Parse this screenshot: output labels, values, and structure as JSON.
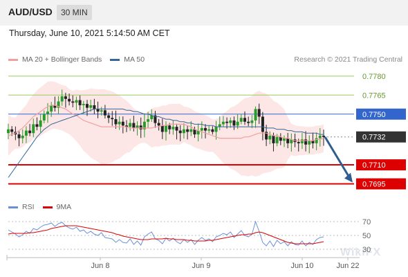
{
  "header": {
    "symbol": "AUD/USD",
    "timeframe": "30 MIN",
    "datetime": "Thursday, June 10, 2021 5:14:50 AM CET"
  },
  "legend": {
    "ma20_label": "MA 20 + Bollinger Bands",
    "ma50_label": "MA 50",
    "credit": "Research © 2021 Trading Central",
    "rsi_label": "RSI",
    "ma9_label": "9MA"
  },
  "watermark": "WikiFX",
  "colors": {
    "ma20": "#f1a0a0",
    "bollinger_fill": "#fde3e3",
    "ma50": "#336699",
    "rsi": "#6b8fd6",
    "ma9": "#dd0000",
    "support": "#dd0000",
    "resistance_green": "#99cc66",
    "pivot_blue": "#3366cc",
    "current": "#333333",
    "candle_up": "#2a9a2a",
    "candle_down": "#222222",
    "arrow": "#2f5d8f"
  },
  "chart_data": [
    {
      "type": "candlestick",
      "title": "AUD/USD 30 MIN",
      "x_ticks": [
        "Jun 8",
        "Jun 9",
        "Jun 10",
        "Jun 22"
      ],
      "ylim": [
        0.7686,
        0.7787
      ],
      "levels": [
        {
          "value": 0.778,
          "label": "0.7780",
          "kind": "resistance"
        },
        {
          "value": 0.7765,
          "label": "0.7765",
          "kind": "resistance"
        },
        {
          "value": 0.775,
          "label": "0.7750",
          "kind": "pivot"
        },
        {
          "value": 0.7732,
          "label": "0.7732",
          "kind": "current"
        },
        {
          "value": 0.771,
          "label": "0.7710",
          "kind": "support"
        },
        {
          "value": 0.7695,
          "label": "0.7695",
          "kind": "support"
        }
      ],
      "close": [
        0.7738,
        0.7736,
        0.7734,
        0.7731,
        0.7733,
        0.7737,
        0.7735,
        0.7742,
        0.774,
        0.7745,
        0.775,
        0.7752,
        0.7757,
        0.7755,
        0.776,
        0.7764,
        0.7762,
        0.776,
        0.7759,
        0.7761,
        0.7757,
        0.7758,
        0.7755,
        0.7757,
        0.7754,
        0.7752,
        0.7753,
        0.7749,
        0.7747,
        0.7746,
        0.7742,
        0.7744,
        0.7741,
        0.774,
        0.7743,
        0.7739,
        0.7741,
        0.7738,
        0.7744,
        0.7746,
        0.7749,
        0.7743,
        0.7741,
        0.7736,
        0.7741,
        0.7738,
        0.774,
        0.7737,
        0.7735,
        0.7738,
        0.7736,
        0.7738,
        0.7734,
        0.7737,
        0.7739,
        0.7737,
        0.7738,
        0.7736,
        0.774,
        0.7742,
        0.7744,
        0.7743,
        0.7745,
        0.7741,
        0.7744,
        0.7747,
        0.7744,
        0.7743,
        0.7745,
        0.7754,
        0.7748,
        0.7736,
        0.773,
        0.7733,
        0.7727,
        0.7732,
        0.7729,
        0.7731,
        0.7727,
        0.773,
        0.7728,
        0.7727,
        0.773,
        0.7726,
        0.7729,
        0.7727,
        0.7731,
        0.7733,
        0.7732
      ],
      "ma20": [
        0.7733,
        0.7734,
        0.7735,
        0.7737,
        0.7739,
        0.7742,
        0.7745,
        0.7748,
        0.775,
        0.7752,
        0.7754,
        0.7756,
        0.7757,
        0.7757,
        0.7756,
        0.7755,
        0.7754,
        0.7752,
        0.775,
        0.7749,
        0.7747,
        0.7745,
        0.7744,
        0.7743,
        0.7742,
        0.7741,
        0.774,
        0.774,
        0.774,
        0.774,
        0.774,
        0.774,
        0.774,
        0.774,
        0.7739,
        0.7739,
        0.7739,
        0.7739,
        0.7739,
        0.7739,
        0.7739,
        0.774,
        0.774,
        0.7741,
        0.7741,
        0.7742,
        0.7742,
        0.7742,
        0.7742,
        0.7742,
        0.7741,
        0.774,
        0.7738,
        0.7737,
        0.7736,
        0.7735,
        0.7734,
        0.7733,
        0.7732,
        0.7731,
        0.7731,
        0.7731,
        0.7731,
        0.7731,
        0.7731,
        0.7731,
        0.7732,
        0.7732,
        0.7733,
        0.7734,
        0.7735,
        0.7735,
        0.7735,
        0.7734,
        0.7733,
        0.7733,
        0.7732,
        0.7731,
        0.7731,
        0.773,
        0.7729,
        0.7729,
        0.7729,
        0.7729,
        0.7729,
        0.7729,
        0.773,
        0.773,
        0.7731
      ],
      "ma50": [
        0.77,
        0.7704,
        0.7708,
        0.7712,
        0.7716,
        0.772,
        0.7724,
        0.7728,
        0.7732,
        0.7735,
        0.7738,
        0.774,
        0.7742,
        0.7743,
        0.7744,
        0.7745,
        0.7746,
        0.7747,
        0.7748,
        0.7749,
        0.775,
        0.7751,
        0.7752,
        0.7753,
        0.7754,
        0.7754,
        0.7754,
        0.7754,
        0.7754,
        0.7754,
        0.7754,
        0.7754,
        0.7754,
        0.7753,
        0.7753,
        0.7752,
        0.7752,
        0.7751,
        0.775,
        0.775,
        0.7749,
        0.7748,
        0.7748,
        0.7747,
        0.7746,
        0.7746,
        0.7745,
        0.7745,
        0.7744,
        0.7744,
        0.7743,
        0.7743,
        0.7742,
        0.7742,
        0.7742,
        0.7741,
        0.7741,
        0.7741,
        0.774,
        0.774,
        0.774,
        0.774,
        0.774,
        0.774,
        0.774,
        0.774,
        0.774,
        0.774,
        0.774,
        0.774,
        0.774,
        0.774,
        0.7739,
        0.7739,
        0.7739,
        0.7738,
        0.7738,
        0.7738,
        0.7737,
        0.7737,
        0.7736,
        0.7736,
        0.7736,
        0.7735,
        0.7735,
        0.7735,
        0.7735,
        0.7734,
        0.7734
      ],
      "forecast": {
        "from": 0.7732,
        "to": 0.7695
      }
    },
    {
      "type": "line",
      "title": "RSI",
      "x_ticks": [
        "Jun 8",
        "Jun 9",
        "Jun 10",
        "Jun 22"
      ],
      "ylim": [
        22,
        78
      ],
      "y_ticks": [
        30,
        50,
        70
      ],
      "series": [
        {
          "name": "RSI",
          "values": [
            58,
            55,
            52,
            48,
            51,
            56,
            53,
            60,
            58,
            62,
            65,
            66,
            68,
            63,
            67,
            69,
            64,
            61,
            59,
            62,
            56,
            58,
            53,
            56,
            52,
            50,
            54,
            47,
            46,
            45,
            40,
            44,
            40,
            39,
            45,
            37,
            42,
            36,
            48,
            52,
            55,
            45,
            43,
            38,
            46,
            42,
            46,
            41,
            38,
            44,
            40,
            44,
            37,
            43,
            47,
            43,
            45,
            41,
            48,
            50,
            53,
            51,
            55,
            47,
            52,
            57,
            50,
            48,
            52,
            70,
            56,
            40,
            35,
            42,
            34,
            43,
            38,
            41,
            35,
            41,
            37,
            36,
            42,
            35,
            40,
            37,
            44,
            47,
            48
          ]
        },
        {
          "name": "9MA",
          "values": [
            52,
            53,
            53,
            53,
            53,
            53,
            54,
            54,
            55,
            56,
            57,
            58,
            60,
            61,
            62,
            63,
            64,
            64,
            64,
            64,
            63,
            62,
            61,
            60,
            59,
            58,
            57,
            56,
            55,
            54,
            52,
            51,
            49,
            48,
            47,
            46,
            45,
            44,
            44,
            44,
            45,
            45,
            45,
            45,
            46,
            45,
            45,
            44,
            44,
            44,
            43,
            43,
            42,
            42,
            42,
            42,
            43,
            43,
            44,
            45,
            46,
            47,
            48,
            49,
            50,
            51,
            51,
            52,
            52,
            54,
            55,
            54,
            52,
            50,
            48,
            46,
            44,
            42,
            40,
            39,
            38,
            38,
            38,
            38,
            38,
            38,
            39,
            40,
            41
          ]
        }
      ]
    }
  ]
}
